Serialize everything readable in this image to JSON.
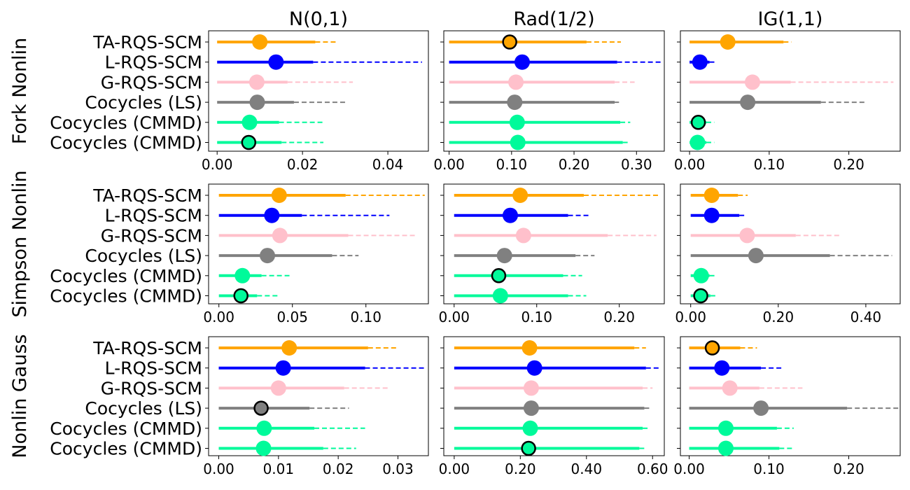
{
  "chart_data": {
    "type": "forest",
    "columns": [
      "N(0,1)",
      "Rad(1/2)",
      "IG(1,1)"
    ],
    "rows": [
      "Fork Nonlin",
      "Simpson Nonlin",
      "Nonlin Gauss"
    ],
    "methods": [
      {
        "name": "TA-RQS-SCM",
        "color": "#ffa500"
      },
      {
        "name": "L-RQS-SCM",
        "color": "#0000ff"
      },
      {
        "name": "G-RQS-SCM",
        "color": "#ffc0cb"
      },
      {
        "name": "Cocycles (LS)",
        "color": "#808080"
      },
      {
        "name": "Cocycles (CMMD)",
        "color": "#00fa9a"
      },
      {
        "name": "Cocycles (CMMD)",
        "color": "#00fa9a"
      }
    ],
    "panels": [
      {
        "row": 0,
        "col": 0,
        "xlim": [
          -0.002,
          0.0495
        ],
        "ticks": [
          0,
          0.02,
          0.04
        ],
        "tick_labels": [
          "0.00",
          "0.02",
          "0.04"
        ],
        "entries": [
          {
            "point": 0.01,
            "thick": 0.023,
            "thin": 0.0282,
            "highlight": false
          },
          {
            "point": 0.0138,
            "thick": 0.0225,
            "thin": 0.048,
            "highlight": false
          },
          {
            "point": 0.0093,
            "thick": 0.0165,
            "thin": 0.0318,
            "highlight": false
          },
          {
            "point": 0.0094,
            "thick": 0.018,
            "thin": 0.0305,
            "highlight": false
          },
          {
            "point": 0.0076,
            "thick": 0.0145,
            "thin": 0.0249,
            "highlight": false
          },
          {
            "point": 0.0074,
            "thick": 0.0151,
            "thin": 0.0249,
            "highlight": true
          }
        ]
      },
      {
        "row": 0,
        "col": 1,
        "xlim": [
          -0.0085,
          0.3445
        ],
        "ticks": [
          0,
          0.1,
          0.2,
          0.3
        ],
        "tick_labels": [
          "0.00",
          "0.10",
          "0.20",
          "0.30"
        ],
        "entries": [
          {
            "point": 0.097,
            "thick": 0.22,
            "thin": 0.275,
            "highlight": true
          },
          {
            "point": 0.117,
            "thick": 0.269,
            "thin": 0.34,
            "highlight": false
          },
          {
            "point": 0.107,
            "thick": 0.265,
            "thin": 0.297,
            "highlight": false
          },
          {
            "point": 0.105,
            "thick": 0.265,
            "thin": 0.272,
            "highlight": false
          },
          {
            "point": 0.109,
            "thick": 0.274,
            "thin": 0.29,
            "highlight": false
          },
          {
            "point": 0.11,
            "thick": 0.278,
            "thin": 0.29,
            "highlight": false
          }
        ]
      },
      {
        "row": 0,
        "col": 2,
        "xlim": [
          -0.0115,
          0.2645
        ],
        "ticks": [
          0,
          0.1,
          0.2
        ],
        "tick_labels": [
          "0.00",
          "0.10",
          "0.20"
        ],
        "entries": [
          {
            "point": 0.048,
            "thick": 0.118,
            "thin": 0.128,
            "highlight": false
          },
          {
            "point": 0.013,
            "thick": 0.025,
            "thin": 0.033,
            "highlight": false
          },
          {
            "point": 0.079,
            "thick": 0.127,
            "thin": 0.256,
            "highlight": false
          },
          {
            "point": 0.073,
            "thick": 0.165,
            "thin": 0.22,
            "highlight": false
          },
          {
            "point": 0.011,
            "thick": 0.021,
            "thin": 0.031,
            "highlight": true
          },
          {
            "point": 0.01,
            "thick": 0.021,
            "thin": 0.031,
            "highlight": false
          }
        ]
      },
      {
        "row": 1,
        "col": 0,
        "xlim": [
          -0.007,
          0.1425
        ],
        "ticks": [
          0,
          0.05,
          0.1
        ],
        "tick_labels": [
          "0.00",
          "0.05",
          "0.10"
        ],
        "entries": [
          {
            "point": 0.041,
            "thick": 0.0862,
            "thin": 0.14,
            "highlight": false
          },
          {
            "point": 0.036,
            "thick": 0.0565,
            "thin": 0.116,
            "highlight": false
          },
          {
            "point": 0.0415,
            "thick": 0.088,
            "thin": 0.135,
            "highlight": false
          },
          {
            "point": 0.033,
            "thick": 0.077,
            "thin": 0.095,
            "highlight": false
          },
          {
            "point": 0.016,
            "thick": 0.029,
            "thin": 0.048,
            "highlight": false
          },
          {
            "point": 0.015,
            "thick": 0.026,
            "thin": 0.04,
            "highlight": true
          }
        ]
      },
      {
        "row": 1,
        "col": 1,
        "xlim": [
          -0.0125,
          0.2545
        ],
        "ticks": [
          0,
          0.1,
          0.2
        ],
        "tick_labels": [
          "0.00",
          "0.10",
          "0.20"
        ],
        "entries": [
          {
            "point": 0.08,
            "thick": 0.157,
            "thin": 0.25,
            "highlight": false
          },
          {
            "point": 0.068,
            "thick": 0.138,
            "thin": 0.165,
            "highlight": false
          },
          {
            "point": 0.084,
            "thick": 0.186,
            "thin": 0.245,
            "highlight": false
          },
          {
            "point": 0.061,
            "thick": 0.147,
            "thin": 0.17,
            "highlight": false
          },
          {
            "point": 0.054,
            "thick": 0.132,
            "thin": 0.155,
            "highlight": true
          },
          {
            "point": 0.056,
            "thick": 0.138,
            "thin": 0.16,
            "highlight": false
          }
        ]
      },
      {
        "row": 1,
        "col": 2,
        "xlim": [
          -0.0235,
          0.4785
        ],
        "ticks": [
          0,
          0.2,
          0.4
        ],
        "tick_labels": [
          "0.00",
          "0.20",
          "0.40"
        ],
        "entries": [
          {
            "point": 0.048,
            "thick": 0.108,
            "thin": 0.13,
            "highlight": false
          },
          {
            "point": 0.048,
            "thick": 0.111,
            "thin": 0.128,
            "highlight": false
          },
          {
            "point": 0.129,
            "thick": 0.24,
            "thin": 0.342,
            "highlight": false
          },
          {
            "point": 0.149,
            "thick": 0.318,
            "thin": 0.46,
            "highlight": false
          },
          {
            "point": 0.024,
            "thick": 0.043,
            "thin": 0.06,
            "highlight": false
          },
          {
            "point": 0.023,
            "thick": 0.045,
            "thin": 0.06,
            "highlight": true
          }
        ]
      },
      {
        "row": 2,
        "col": 0,
        "xlim": [
          -0.0017,
          0.0351
        ],
        "ticks": [
          0,
          0.01,
          0.02,
          0.03
        ],
        "tick_labels": [
          "0.00",
          "0.01",
          "0.02",
          "0.03"
        ],
        "entries": [
          {
            "point": 0.0118,
            "thick": 0.025,
            "thin": 0.03,
            "highlight": false
          },
          {
            "point": 0.0108,
            "thick": 0.0245,
            "thin": 0.0345,
            "highlight": false
          },
          {
            "point": 0.01,
            "thick": 0.021,
            "thin": 0.0285,
            "highlight": false
          },
          {
            "point": 0.0071,
            "thick": 0.0152,
            "thin": 0.0218,
            "highlight": true
          },
          {
            "point": 0.0076,
            "thick": 0.016,
            "thin": 0.0245,
            "highlight": false
          },
          {
            "point": 0.0075,
            "thick": 0.0175,
            "thin": 0.023,
            "highlight": false
          }
        ]
      },
      {
        "row": 2,
        "col": 1,
        "xlim": [
          -0.0315,
          0.6355
        ],
        "ticks": [
          0,
          0.2,
          0.4,
          0.6
        ],
        "tick_labels": [
          "0.00",
          "0.20",
          "0.40",
          "0.60"
        ],
        "entries": [
          {
            "point": 0.228,
            "thick": 0.545,
            "thin": 0.58,
            "highlight": false
          },
          {
            "point": 0.243,
            "thick": 0.58,
            "thin": 0.625,
            "highlight": false
          },
          {
            "point": 0.233,
            "thick": 0.57,
            "thin": 0.6,
            "highlight": false
          },
          {
            "point": 0.233,
            "thick": 0.575,
            "thin": 0.59,
            "highlight": false
          },
          {
            "point": 0.23,
            "thick": 0.57,
            "thin": 0.585,
            "highlight": false
          },
          {
            "point": 0.225,
            "thick": 0.56,
            "thin": 0.58,
            "highlight": true
          }
        ]
      },
      {
        "row": 2,
        "col": 2,
        "xlim": [
          -0.011,
          0.2645
        ],
        "ticks": [
          0,
          0.1,
          0.2
        ],
        "tick_labels": [
          "0.00",
          "0.10",
          "0.20"
        ],
        "entries": [
          {
            "point": 0.029,
            "thick": 0.064,
            "thin": 0.085,
            "highlight": true
          },
          {
            "point": 0.041,
            "thick": 0.09,
            "thin": 0.118,
            "highlight": false
          },
          {
            "point": 0.051,
            "thick": 0.088,
            "thin": 0.142,
            "highlight": false
          },
          {
            "point": 0.09,
            "thick": 0.198,
            "thin": 0.265,
            "highlight": false
          },
          {
            "point": 0.046,
            "thick": 0.11,
            "thin": 0.131,
            "highlight": false
          },
          {
            "point": 0.046,
            "thick": 0.113,
            "thin": 0.13,
            "highlight": false
          }
        ]
      }
    ]
  }
}
